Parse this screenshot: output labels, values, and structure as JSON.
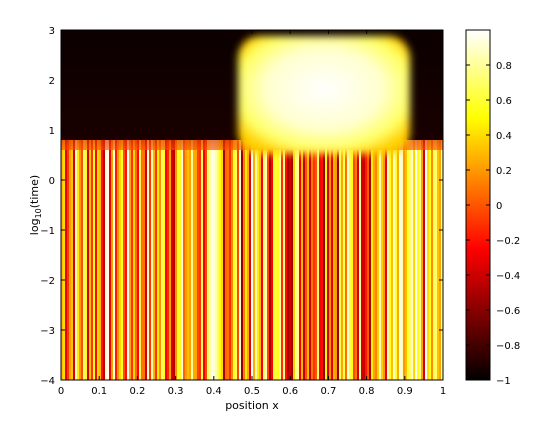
{
  "chart_data": [
    {
      "type": "heatmap",
      "title": "",
      "xlabel": "position x",
      "ylabel_main": "log",
      "ylabel_sub": "10",
      "ylabel_tail": "(time)",
      "x_ticks": [
        "0",
        "0.1",
        "0.2",
        "0.3",
        "0.4",
        "0.5",
        "0.6",
        "0.7",
        "0.8",
        "0.9",
        "1"
      ],
      "y_ticks": [
        "-4",
        "-3",
        "-2",
        "-1",
        "0",
        "1",
        "2",
        "3"
      ],
      "xlim": [
        0,
        1
      ],
      "ylim": [
        -4,
        3
      ],
      "colormap": "hot",
      "grid": false,
      "regions": [
        {
          "description_value": "striped field",
          "x_range": [
            0,
            1
          ],
          "y_range": [
            -4,
            0.65
          ],
          "value_range": [
            -1,
            1
          ]
        },
        {
          "description_value": "low plateau",
          "x_range": [
            0,
            0.46
          ],
          "y_range": [
            0.8,
            2.8
          ],
          "value": -1
        },
        {
          "description_value": "high plateau",
          "x_range": [
            0.47,
            0.91
          ],
          "y_range": [
            0.65,
            2.85
          ],
          "value": 1
        },
        {
          "description_value": "low plateau",
          "x_range": [
            0.91,
            1
          ],
          "y_range": [
            0.8,
            2.8
          ],
          "value": -1
        }
      ]
    },
    {
      "type": "colorbar",
      "range": [
        -1,
        1
      ],
      "ticks": [
        "-1",
        "-0.8",
        "-0.6",
        "-0.4",
        "-0.2",
        "0",
        "0.2",
        "0.4",
        "0.6",
        "0.8"
      ],
      "colormap": "hot"
    }
  ]
}
